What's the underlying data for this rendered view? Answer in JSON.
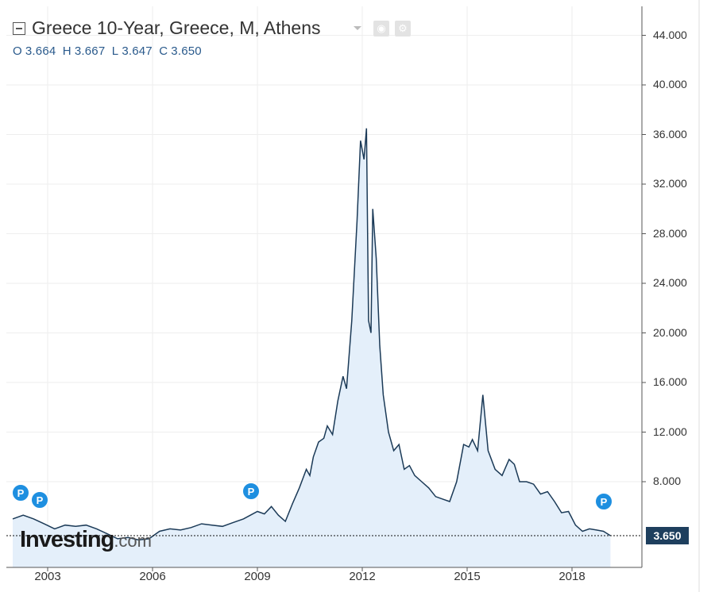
{
  "legend": {
    "title": "Greece 10-Year, Greece, M, Athens",
    "ohlc": {
      "o_label": "O",
      "o": "3.664",
      "h_label": "H",
      "h": "3.667",
      "l_label": "L",
      "l": "3.647",
      "c_label": "C",
      "c": "3.650"
    }
  },
  "current_price": "3.650",
  "watermark": {
    "brand": "Investing",
    "suffix": ".com"
  },
  "markers": {
    "label": "P"
  },
  "colors": {
    "line": "#1b3a57",
    "fill": "#e4effa",
    "price_tag": "#1e3f5e",
    "marker": "#1e8fe0",
    "grid": "#eeeeee"
  },
  "chart_data": {
    "type": "area",
    "title": "Greece 10-Year, Greece, M, Athens",
    "xlabel": "",
    "ylabel": "",
    "ylim": [
      0,
      46
    ],
    "y_ticks": [
      "44.000",
      "40.000",
      "36.000",
      "32.000",
      "28.000",
      "24.000",
      "20.000",
      "16.000",
      "12.000",
      "8.000"
    ],
    "x_ticks": [
      "2003",
      "2006",
      "2009",
      "2012",
      "2015",
      "2018"
    ],
    "x_tick_years": [
      2003,
      2006,
      2009,
      2012,
      2015,
      2018
    ],
    "grid": true,
    "series": [
      {
        "x": [
          2002.0,
          2002.3,
          2002.6,
          2002.9,
          2003.2,
          2003.5,
          2003.8,
          2004.1,
          2004.4,
          2004.7,
          2005.0,
          2005.3,
          2005.6,
          2005.9,
          2006.2,
          2006.5,
          2006.8,
          2007.1,
          2007.4,
          2007.7,
          2008.0,
          2008.3,
          2008.6,
          2008.8,
          2009.0,
          2009.2,
          2009.4,
          2009.6,
          2009.8,
          2010.0,
          2010.2,
          2010.4,
          2010.5,
          2010.6,
          2010.75,
          2010.9,
          2011.0,
          2011.15,
          2011.3,
          2011.45,
          2011.55,
          2011.7,
          2011.85,
          2011.95,
          2012.05,
          2012.12,
          2012.18,
          2012.25,
          2012.3,
          2012.4,
          2012.5,
          2012.6,
          2012.75,
          2012.9,
          2013.05,
          2013.2,
          2013.35,
          2013.5,
          2013.7,
          2013.9,
          2014.1,
          2014.3,
          2014.5,
          2014.7,
          2014.9,
          2015.05,
          2015.15,
          2015.3,
          2015.45,
          2015.6,
          2015.8,
          2016.0,
          2016.2,
          2016.35,
          2016.5,
          2016.7,
          2016.9,
          2017.1,
          2017.3,
          2017.5,
          2017.7,
          2017.9,
          2018.1,
          2018.3,
          2018.5,
          2018.7,
          2018.9,
          2019.1
        ],
        "values": [
          5.0,
          5.3,
          5.0,
          4.6,
          4.2,
          4.5,
          4.4,
          4.5,
          4.2,
          3.8,
          3.4,
          3.5,
          3.3,
          3.4,
          4.0,
          4.2,
          4.1,
          4.3,
          4.6,
          4.5,
          4.4,
          4.7,
          5.0,
          5.3,
          5.6,
          5.4,
          6.0,
          5.3,
          4.8,
          6.2,
          7.5,
          9.0,
          8.5,
          10.0,
          11.2,
          11.5,
          12.5,
          11.8,
          14.5,
          16.5,
          15.5,
          21.0,
          29.0,
          35.5,
          34.0,
          36.5,
          21.0,
          20.0,
          30.0,
          26.0,
          19.0,
          15.0,
          12.0,
          10.5,
          11.0,
          9.0,
          9.3,
          8.5,
          8.0,
          7.5,
          6.8,
          6.6,
          6.4,
          8.0,
          11.0,
          10.8,
          11.4,
          10.5,
          15.0,
          10.5,
          9.0,
          8.5,
          9.8,
          9.4,
          8.0,
          8.0,
          7.8,
          7.0,
          7.2,
          6.4,
          5.5,
          5.6,
          4.5,
          4.0,
          4.2,
          4.1,
          4.0,
          3.65
        ]
      }
    ]
  }
}
